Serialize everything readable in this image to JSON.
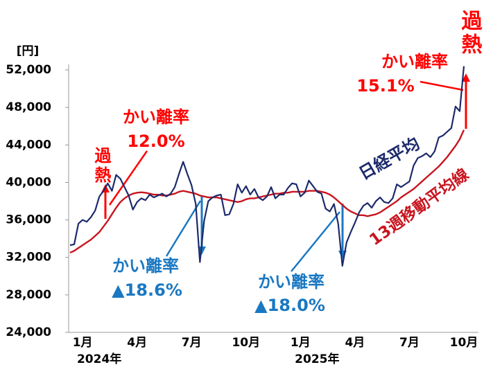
{
  "chart_data": {
    "type": "line",
    "unit_label": "[円]",
    "categories": [
      null,
      null,
      null,
      "1月",
      null,
      null,
      null,
      null,
      null,
      null,
      null,
      null,
      null,
      null,
      null,
      null,
      "4月",
      null,
      null,
      null,
      null,
      null,
      null,
      null,
      null,
      null,
      null,
      null,
      null,
      "7月",
      null,
      null,
      null,
      null,
      null,
      null,
      null,
      null,
      null,
      null,
      null,
      null,
      "10月",
      null,
      null,
      null,
      null,
      null,
      null,
      null,
      null,
      null,
      null,
      null,
      null,
      "1月",
      null,
      null,
      null,
      null,
      null,
      null,
      null,
      null,
      null,
      null,
      null,
      null,
      "4月",
      null,
      null,
      null,
      null,
      null,
      null,
      null,
      null,
      null,
      null,
      null,
      null,
      "7月",
      null,
      null,
      null,
      null,
      null,
      null,
      null,
      null,
      null,
      null,
      null,
      null,
      "10月"
    ],
    "category_years": [
      null,
      null,
      null,
      "2024年",
      null,
      null,
      null,
      null,
      null,
      null,
      null,
      null,
      null,
      null,
      null,
      null,
      null,
      null,
      null,
      null,
      null,
      null,
      null,
      null,
      null,
      null,
      null,
      null,
      null,
      null,
      null,
      null,
      null,
      null,
      null,
      null,
      null,
      null,
      null,
      null,
      null,
      null,
      null,
      null,
      null,
      null,
      null,
      null,
      null,
      null,
      null,
      null,
      null,
      null,
      null,
      "2025年",
      null,
      null,
      null,
      null,
      null,
      null,
      null,
      null,
      null,
      null,
      null,
      null,
      null,
      null,
      null,
      null,
      null,
      null,
      null,
      null,
      null,
      null,
      null,
      null,
      null,
      null,
      null,
      null,
      null,
      null,
      null,
      null,
      null,
      null,
      null,
      null,
      null,
      null,
      null
    ],
    "series": [
      {
        "name": "日経平均",
        "color": "#1c2a6b",
        "values": [
          33300,
          33400,
          35600,
          36000,
          35800,
          36300,
          37000,
          38500,
          39100,
          39900,
          39100,
          40800,
          40400,
          39500,
          38600,
          37100,
          37900,
          38300,
          38100,
          38700,
          38400,
          38600,
          38800,
          38500,
          38800,
          39500,
          40900,
          42200,
          40900,
          39700,
          37700,
          31500,
          35900,
          38000,
          38400,
          38600,
          38700,
          36500,
          36600,
          37700,
          39800,
          38900,
          39600,
          38700,
          39300,
          38400,
          38100,
          38500,
          39500,
          38300,
          38700,
          38700,
          39400,
          39900,
          39800,
          38500,
          38900,
          40200,
          39600,
          39000,
          38800,
          37200,
          36900,
          37700,
          35600,
          31100,
          33600,
          34700,
          35700,
          36800,
          37500,
          37800,
          37300,
          38000,
          38400,
          37900,
          37800,
          38300,
          39800,
          39500,
          39800,
          40100,
          41800,
          42600,
          42800,
          43100,
          42700,
          43300,
          44800,
          45000,
          45400,
          45800,
          48100,
          47600,
          52400
        ]
      },
      {
        "name": "13週移動平均線",
        "color": "#c8141e",
        "values": [
          32500,
          32700,
          33000,
          33300,
          33600,
          33900,
          34300,
          34700,
          35300,
          35900,
          36600,
          37300,
          37900,
          38300,
          38600,
          38800,
          38900,
          38950,
          38900,
          38800,
          38700,
          38700,
          38600,
          38600,
          38700,
          38800,
          39000,
          39100,
          39000,
          38900,
          38800,
          38600,
          38500,
          38400,
          38400,
          38400,
          38300,
          38200,
          38100,
          38000,
          37900,
          38000,
          38200,
          38300,
          38300,
          38400,
          38500,
          38600,
          38700,
          38800,
          38800,
          38900,
          38900,
          39000,
          39000,
          39000,
          39000,
          39100,
          39100,
          39100,
          39000,
          38900,
          38700,
          38400,
          38000,
          37600,
          37200,
          36900,
          36700,
          36500,
          36500,
          36400,
          36500,
          36600,
          36800,
          37100,
          37400,
          37700,
          38000,
          38400,
          38700,
          39000,
          39300,
          39700,
          40100,
          40500,
          40900,
          41300,
          41700,
          42200,
          42700,
          43300,
          43900,
          44600,
          45600
        ]
      }
    ],
    "ylim": [
      24000,
      52000
    ],
    "yticks": [
      {
        "value": 24000,
        "label": "24,000"
      },
      {
        "value": 28000,
        "label": "28,000"
      },
      {
        "value": 32000,
        "label": "32,000"
      },
      {
        "value": 36000,
        "label": "36,000"
      },
      {
        "value": 40000,
        "label": "40,000"
      },
      {
        "value": 44000,
        "label": "44,000"
      },
      {
        "value": 48000,
        "label": "48,000"
      },
      {
        "value": 52000,
        "label": "52,000"
      }
    ],
    "grid": false,
    "annotations": [
      {
        "text": "過熱",
        "color": "#ff0000"
      },
      {
        "text": "かい離率",
        "color": "#ff0000"
      },
      {
        "text": "12.0%",
        "color": "#ff0000"
      },
      {
        "text": "過熱",
        "color": "#ff0000"
      },
      {
        "text": "かい離率",
        "color": "#ff0000"
      },
      {
        "text": "15.1%",
        "color": "#ff0000"
      },
      {
        "text": "かい離率",
        "color": "#1a78c2"
      },
      {
        "text": "▲18.6%",
        "color": "#1a78c2"
      },
      {
        "text": "かい離率",
        "color": "#1a78c2"
      },
      {
        "text": "▲18.0%",
        "color": "#1a78c2"
      }
    ]
  }
}
